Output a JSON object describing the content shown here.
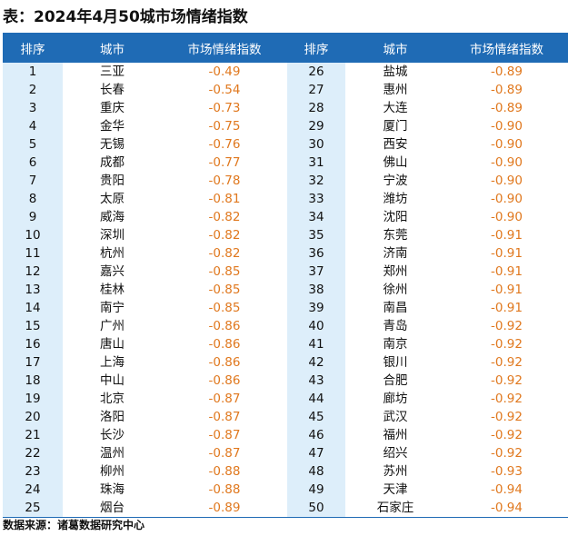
{
  "title": "表：2024年4月50城市场情绪指数",
  "headers": [
    "排序",
    "城市",
    "市场情绪指数",
    "排序",
    "城市",
    "市场情绪指数"
  ],
  "left": [
    {
      "rank": "1",
      "city": "三亚",
      "value": "-0.49"
    },
    {
      "rank": "2",
      "city": "长春",
      "value": "-0.54"
    },
    {
      "rank": "3",
      "city": "重庆",
      "value": "-0.73"
    },
    {
      "rank": "4",
      "city": "金华",
      "value": "-0.75"
    },
    {
      "rank": "5",
      "city": "无锡",
      "value": "-0.76"
    },
    {
      "rank": "6",
      "city": "成都",
      "value": "-0.77"
    },
    {
      "rank": "7",
      "city": "贵阳",
      "value": "-0.78"
    },
    {
      "rank": "8",
      "city": "太原",
      "value": "-0.81"
    },
    {
      "rank": "9",
      "city": "威海",
      "value": "-0.82"
    },
    {
      "rank": "10",
      "city": "深圳",
      "value": "-0.82"
    },
    {
      "rank": "11",
      "city": "杭州",
      "value": "-0.82"
    },
    {
      "rank": "12",
      "city": "嘉兴",
      "value": "-0.85"
    },
    {
      "rank": "13",
      "city": "桂林",
      "value": "-0.85"
    },
    {
      "rank": "14",
      "city": "南宁",
      "value": "-0.85"
    },
    {
      "rank": "15",
      "city": "广州",
      "value": "-0.86"
    },
    {
      "rank": "16",
      "city": "唐山",
      "value": "-0.86"
    },
    {
      "rank": "17",
      "city": "上海",
      "value": "-0.86"
    },
    {
      "rank": "18",
      "city": "中山",
      "value": "-0.86"
    },
    {
      "rank": "19",
      "city": "北京",
      "value": "-0.87"
    },
    {
      "rank": "20",
      "city": "洛阳",
      "value": "-0.87"
    },
    {
      "rank": "21",
      "city": "长沙",
      "value": "-0.87"
    },
    {
      "rank": "22",
      "city": "温州",
      "value": "-0.87"
    },
    {
      "rank": "23",
      "city": "柳州",
      "value": "-0.88"
    },
    {
      "rank": "24",
      "city": "珠海",
      "value": "-0.88"
    },
    {
      "rank": "25",
      "city": "烟台",
      "value": "-0.89"
    }
  ],
  "right": [
    {
      "rank": "26",
      "city": "盐城",
      "value": "-0.89"
    },
    {
      "rank": "27",
      "city": "惠州",
      "value": "-0.89"
    },
    {
      "rank": "28",
      "city": "大连",
      "value": "-0.89"
    },
    {
      "rank": "29",
      "city": "厦门",
      "value": "-0.90"
    },
    {
      "rank": "30",
      "city": "西安",
      "value": "-0.90"
    },
    {
      "rank": "31",
      "city": "佛山",
      "value": "-0.90"
    },
    {
      "rank": "32",
      "city": "宁波",
      "value": "-0.90"
    },
    {
      "rank": "33",
      "city": "潍坊",
      "value": "-0.90"
    },
    {
      "rank": "34",
      "city": "沈阳",
      "value": "-0.90"
    },
    {
      "rank": "35",
      "city": "东莞",
      "value": "-0.91"
    },
    {
      "rank": "36",
      "city": "济南",
      "value": "-0.91"
    },
    {
      "rank": "37",
      "city": "郑州",
      "value": "-0.91"
    },
    {
      "rank": "38",
      "city": "徐州",
      "value": "-0.91"
    },
    {
      "rank": "39",
      "city": "南昌",
      "value": "-0.91"
    },
    {
      "rank": "40",
      "city": "青岛",
      "value": "-0.92"
    },
    {
      "rank": "41",
      "city": "南京",
      "value": "-0.92"
    },
    {
      "rank": "42",
      "city": "银川",
      "value": "-0.92"
    },
    {
      "rank": "43",
      "city": "合肥",
      "value": "-0.92"
    },
    {
      "rank": "44",
      "city": "廊坊",
      "value": "-0.92"
    },
    {
      "rank": "45",
      "city": "武汉",
      "value": "-0.92"
    },
    {
      "rank": "46",
      "city": "福州",
      "value": "-0.92"
    },
    {
      "rank": "47",
      "city": "绍兴",
      "value": "-0.92"
    },
    {
      "rank": "48",
      "city": "苏州",
      "value": "-0.93"
    },
    {
      "rank": "49",
      "city": "天津",
      "value": "-0.94"
    },
    {
      "rank": "50",
      "city": "石家庄",
      "value": "-0.94"
    }
  ],
  "source": "数据来源：诸葛数据研究中心",
  "colors": {
    "header_bg": "#1f6bb5",
    "rank_bg": "#ddeefa",
    "value_text": "#e0781e"
  }
}
